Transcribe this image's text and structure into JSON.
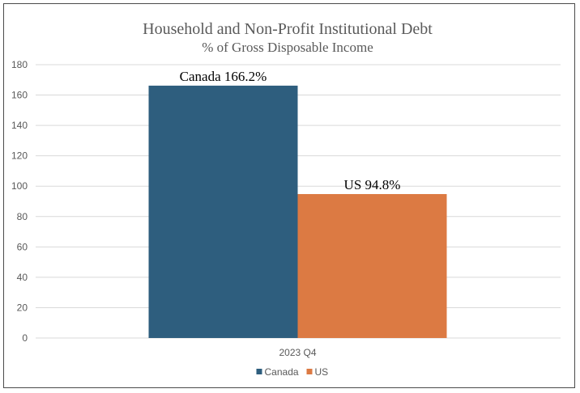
{
  "chart_data": {
    "type": "bar",
    "title": "Household and Non-Profit Institutional Debt",
    "subtitle": "% of Gross Disposable Income",
    "categories": [
      "2023 Q4"
    ],
    "series": [
      {
        "name": "Canada",
        "values": [
          166.2
        ],
        "color": "#2e5e7e",
        "label": "Canada 166.2%"
      },
      {
        "name": "US",
        "values": [
          94.8
        ],
        "color": "#dc7a43",
        "label": "US 94.8%"
      }
    ],
    "ylim": [
      0,
      180
    ],
    "yticks": [
      0,
      20,
      40,
      60,
      80,
      100,
      120,
      140,
      160,
      180
    ],
    "ytick_labels": [
      "0",
      "20",
      "40",
      "60",
      "80",
      "100",
      "120",
      "140",
      "160",
      "180"
    ],
    "xlabel": "",
    "ylabel": "",
    "grid": true,
    "legend_position": "bottom"
  }
}
